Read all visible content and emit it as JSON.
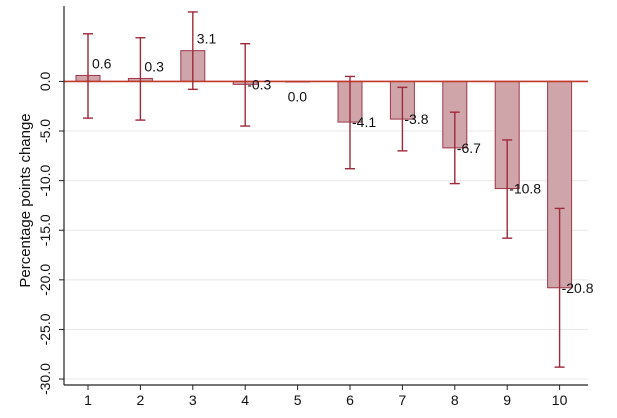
{
  "chart_data": {
    "type": "bar",
    "title": "",
    "xlabel": "",
    "ylabel": "Percentage points change",
    "categories": [
      "1",
      "2",
      "3",
      "4",
      "5",
      "6",
      "7",
      "8",
      "9",
      "10"
    ],
    "values": [
      0.6,
      0.3,
      3.1,
      -0.3,
      0.0,
      -4.1,
      -3.8,
      -6.7,
      -10.8,
      -20.8
    ],
    "value_labels": [
      "0.6",
      "0.3",
      "3.1",
      "-0.3",
      "0.0",
      "-4.1",
      "-3.8",
      "-6.7",
      "-10.8",
      "-20.8"
    ],
    "ci_low": [
      -3.7,
      -3.9,
      -0.8,
      -4.5,
      0.0,
      -8.8,
      -7.0,
      -10.3,
      -15.8,
      -28.8
    ],
    "ci_high": [
      4.8,
      4.4,
      7.0,
      3.8,
      0.0,
      0.5,
      -0.6,
      -3.1,
      -5.9,
      -12.8
    ],
    "ylim": [
      -30.6,
      7.6
    ],
    "yticks": [
      0,
      -5,
      -10,
      -15,
      -20,
      -25,
      -30
    ],
    "ytick_labels": [
      "0.0",
      "-5.0",
      "-10.0",
      "-15.0",
      "-20.0",
      "-25.0",
      "-30.0"
    ],
    "grid": true,
    "legend": "none",
    "colors": {
      "bar_fill": "#cfa5aa",
      "bar_stroke": "#9e3848",
      "errorbar": "#9e2a3a",
      "zero_line": "#c0392b",
      "grid": "#e8e8e8",
      "axis": "#222222"
    }
  }
}
